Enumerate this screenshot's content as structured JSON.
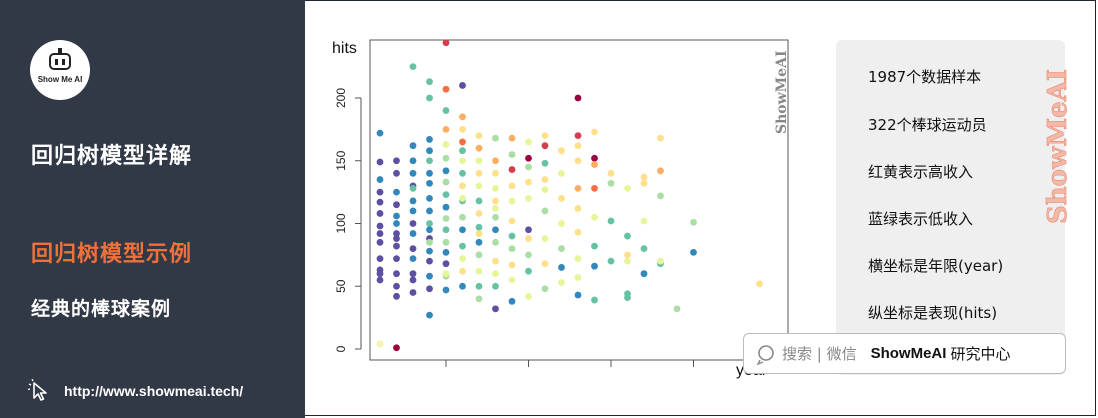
{
  "sidebar": {
    "logo_text": "Show Me AI",
    "title_main": "回归树模型详解",
    "title_highlight": "回归树模型示例",
    "subtitle": "经典的棒球案例",
    "link_url": "http://www.showmeai.tech/"
  },
  "plot": {
    "ylabel": "hits",
    "xlabel": "year",
    "watermark": "ShowMeAI",
    "ytick_labels": [
      "0",
      "50",
      "100",
      "150",
      "200"
    ]
  },
  "chart_data": {
    "type": "scatter",
    "title": "",
    "xlabel": "year",
    "ylabel": "hits",
    "ylim": [
      0,
      240
    ],
    "xlim": [
      0,
      25
    ],
    "yticks": [
      0,
      50,
      100,
      150,
      200
    ],
    "x_tick_labels_shown": false,
    "color_scale": "Spectral: red/yellow = high salary, blue/green = low salary",
    "points": [
      {
        "x": 1,
        "y": 4,
        "c": "#f6f2b0"
      },
      {
        "x": 1,
        "y": 149,
        "c": "#5e4fa2"
      },
      {
        "x": 1,
        "y": 172,
        "c": "#3288bd"
      },
      {
        "x": 1,
        "y": 60,
        "c": "#5e4fa2"
      },
      {
        "x": 1,
        "y": 85,
        "c": "#5e4fa2"
      },
      {
        "x": 1,
        "y": 108,
        "c": "#5e4fa2"
      },
      {
        "x": 1,
        "y": 135,
        "c": "#3288bd"
      },
      {
        "x": 1,
        "y": 55,
        "c": "#5e4fa2"
      },
      {
        "x": 1,
        "y": 72,
        "c": "#5e4fa2"
      },
      {
        "x": 1,
        "y": 98,
        "c": "#5e4fa2"
      },
      {
        "x": 1,
        "y": 117,
        "c": "#5e4fa2"
      },
      {
        "x": 1,
        "y": 125,
        "c": "#5e4fa2"
      },
      {
        "x": 1,
        "y": 92,
        "c": "#5e4fa2"
      },
      {
        "x": 1,
        "y": 63,
        "c": "#5e4fa2"
      },
      {
        "x": 2,
        "y": 1,
        "c": "#9e0142"
      },
      {
        "x": 2,
        "y": 150,
        "c": "#5e4fa2"
      },
      {
        "x": 2,
        "y": 140,
        "c": "#5e4fa2"
      },
      {
        "x": 2,
        "y": 125,
        "c": "#3288bd"
      },
      {
        "x": 2,
        "y": 115,
        "c": "#5e4fa2"
      },
      {
        "x": 2,
        "y": 100,
        "c": "#3288bd"
      },
      {
        "x": 2,
        "y": 92,
        "c": "#5e4fa2"
      },
      {
        "x": 2,
        "y": 82,
        "c": "#5e4fa2"
      },
      {
        "x": 2,
        "y": 72,
        "c": "#5e4fa2"
      },
      {
        "x": 2,
        "y": 60,
        "c": "#5e4fa2"
      },
      {
        "x": 2,
        "y": 50,
        "c": "#5e4fa2"
      },
      {
        "x": 2,
        "y": 42,
        "c": "#5e4fa2"
      },
      {
        "x": 2,
        "y": 106,
        "c": "#3288bd"
      },
      {
        "x": 2,
        "y": 88,
        "c": "#5e4fa2"
      },
      {
        "x": 3,
        "y": 225,
        "c": "#66c2a5"
      },
      {
        "x": 3,
        "y": 162,
        "c": "#3288bd"
      },
      {
        "x": 3,
        "y": 150,
        "c": "#3288bd"
      },
      {
        "x": 3,
        "y": 140,
        "c": "#3288bd"
      },
      {
        "x": 3,
        "y": 130,
        "c": "#5e4fa2"
      },
      {
        "x": 3,
        "y": 118,
        "c": "#3288bd"
      },
      {
        "x": 3,
        "y": 110,
        "c": "#3288bd"
      },
      {
        "x": 3,
        "y": 100,
        "c": "#5e4fa2"
      },
      {
        "x": 3,
        "y": 92,
        "c": "#3288bd"
      },
      {
        "x": 3,
        "y": 80,
        "c": "#5e4fa2"
      },
      {
        "x": 3,
        "y": 72,
        "c": "#3288bd"
      },
      {
        "x": 3,
        "y": 60,
        "c": "#5e4fa2"
      },
      {
        "x": 3,
        "y": 55,
        "c": "#5e4fa2"
      },
      {
        "x": 3,
        "y": 45,
        "c": "#5e4fa2"
      },
      {
        "x": 3,
        "y": 128,
        "c": "#66c2a5"
      },
      {
        "x": 4,
        "y": 213,
        "c": "#66c2a5"
      },
      {
        "x": 4,
        "y": 200,
        "c": "#66c2a5"
      },
      {
        "x": 4,
        "y": 167,
        "c": "#3288bd"
      },
      {
        "x": 4,
        "y": 158,
        "c": "#3288bd"
      },
      {
        "x": 4,
        "y": 150,
        "c": "#66c2a5"
      },
      {
        "x": 4,
        "y": 140,
        "c": "#3288bd"
      },
      {
        "x": 4,
        "y": 132,
        "c": "#3288bd"
      },
      {
        "x": 4,
        "y": 120,
        "c": "#3288bd"
      },
      {
        "x": 4,
        "y": 110,
        "c": "#3288bd"
      },
      {
        "x": 4,
        "y": 100,
        "c": "#66c2a5"
      },
      {
        "x": 4,
        "y": 95,
        "c": "#3288bd"
      },
      {
        "x": 4,
        "y": 88,
        "c": "#5e4fa2"
      },
      {
        "x": 4,
        "y": 78,
        "c": "#3288bd"
      },
      {
        "x": 4,
        "y": 70,
        "c": "#5e4fa2"
      },
      {
        "x": 4,
        "y": 58,
        "c": "#3288bd"
      },
      {
        "x": 4,
        "y": 48,
        "c": "#5e4fa2"
      },
      {
        "x": 4,
        "y": 27,
        "c": "#3288bd"
      },
      {
        "x": 4,
        "y": 85,
        "c": "#abdda4"
      },
      {
        "x": 5,
        "y": 244,
        "c": "#d53e4f"
      },
      {
        "x": 5,
        "y": 207,
        "c": "#f46d43"
      },
      {
        "x": 5,
        "y": 190,
        "c": "#66c2a5"
      },
      {
        "x": 5,
        "y": 175,
        "c": "#fdae61"
      },
      {
        "x": 5,
        "y": 163,
        "c": "#e6f598"
      },
      {
        "x": 5,
        "y": 152,
        "c": "#abdda4"
      },
      {
        "x": 5,
        "y": 142,
        "c": "#3288bd"
      },
      {
        "x": 5,
        "y": 133,
        "c": "#abdda4"
      },
      {
        "x": 5,
        "y": 123,
        "c": "#66c2a5"
      },
      {
        "x": 5,
        "y": 113,
        "c": "#3288bd"
      },
      {
        "x": 5,
        "y": 104,
        "c": "#abdda4"
      },
      {
        "x": 5,
        "y": 95,
        "c": "#66c2a5"
      },
      {
        "x": 5,
        "y": 85,
        "c": "#abdda4"
      },
      {
        "x": 5,
        "y": 77,
        "c": "#3288bd"
      },
      {
        "x": 5,
        "y": 68,
        "c": "#5e4fa2"
      },
      {
        "x": 5,
        "y": 58,
        "c": "#abdda4"
      },
      {
        "x": 5,
        "y": 47,
        "c": "#3288bd"
      },
      {
        "x": 5,
        "y": 60,
        "c": "#e6f598"
      },
      {
        "x": 6,
        "y": 210,
        "c": "#5e4fa2"
      },
      {
        "x": 6,
        "y": 185,
        "c": "#fdae61"
      },
      {
        "x": 6,
        "y": 175,
        "c": "#fee08b"
      },
      {
        "x": 6,
        "y": 165,
        "c": "#f46d43"
      },
      {
        "x": 6,
        "y": 158,
        "c": "#66c2a5"
      },
      {
        "x": 6,
        "y": 150,
        "c": "#e6f598"
      },
      {
        "x": 6,
        "y": 140,
        "c": "#66c2a5"
      },
      {
        "x": 6,
        "y": 130,
        "c": "#fee08b"
      },
      {
        "x": 6,
        "y": 118,
        "c": "#66c2a5"
      },
      {
        "x": 6,
        "y": 105,
        "c": "#abdda4"
      },
      {
        "x": 6,
        "y": 95,
        "c": "#3288bd"
      },
      {
        "x": 6,
        "y": 82,
        "c": "#66c2a5"
      },
      {
        "x": 6,
        "y": 72,
        "c": "#e6f598"
      },
      {
        "x": 6,
        "y": 62,
        "c": "#fee08b"
      },
      {
        "x": 6,
        "y": 50,
        "c": "#3288bd"
      },
      {
        "x": 6,
        "y": 120,
        "c": "#e6f598"
      },
      {
        "x": 7,
        "y": 170,
        "c": "#fee08b"
      },
      {
        "x": 7,
        "y": 160,
        "c": "#fdae61"
      },
      {
        "x": 7,
        "y": 150,
        "c": "#e6f598"
      },
      {
        "x": 7,
        "y": 140,
        "c": "#fee08b"
      },
      {
        "x": 7,
        "y": 130,
        "c": "#e6f598"
      },
      {
        "x": 7,
        "y": 118,
        "c": "#66c2a5"
      },
      {
        "x": 7,
        "y": 108,
        "c": "#fee08b"
      },
      {
        "x": 7,
        "y": 97,
        "c": "#66c2a5"
      },
      {
        "x": 7,
        "y": 85,
        "c": "#3288bd"
      },
      {
        "x": 7,
        "y": 75,
        "c": "#abdda4"
      },
      {
        "x": 7,
        "y": 62,
        "c": "#e6f598"
      },
      {
        "x": 7,
        "y": 50,
        "c": "#66c2a5"
      },
      {
        "x": 7,
        "y": 40,
        "c": "#abdda4"
      },
      {
        "x": 7,
        "y": 92,
        "c": "#fee08b"
      },
      {
        "x": 8,
        "y": 168,
        "c": "#abdda4"
      },
      {
        "x": 8,
        "y": 150,
        "c": "#fdae61"
      },
      {
        "x": 8,
        "y": 140,
        "c": "#fee08b"
      },
      {
        "x": 8,
        "y": 128,
        "c": "#e6f598"
      },
      {
        "x": 8,
        "y": 118,
        "c": "#fee08b"
      },
      {
        "x": 8,
        "y": 105,
        "c": "#abdda4"
      },
      {
        "x": 8,
        "y": 95,
        "c": "#3288bd"
      },
      {
        "x": 8,
        "y": 85,
        "c": "#abdda4"
      },
      {
        "x": 8,
        "y": 70,
        "c": "#fee08b"
      },
      {
        "x": 8,
        "y": 60,
        "c": "#e6f598"
      },
      {
        "x": 8,
        "y": 50,
        "c": "#66c2a5"
      },
      {
        "x": 8,
        "y": 32,
        "c": "#5e4fa2"
      },
      {
        "x": 8,
        "y": 112,
        "c": "#e6f598"
      },
      {
        "x": 9,
        "y": 168,
        "c": "#fdae61"
      },
      {
        "x": 9,
        "y": 155,
        "c": "#abdda4"
      },
      {
        "x": 9,
        "y": 143,
        "c": "#d53e4f"
      },
      {
        "x": 9,
        "y": 130,
        "c": "#fee08b"
      },
      {
        "x": 9,
        "y": 118,
        "c": "#e6f598"
      },
      {
        "x": 9,
        "y": 102,
        "c": "#fee08b"
      },
      {
        "x": 9,
        "y": 90,
        "c": "#66c2a5"
      },
      {
        "x": 9,
        "y": 80,
        "c": "#abdda4"
      },
      {
        "x": 9,
        "y": 67,
        "c": "#fee08b"
      },
      {
        "x": 9,
        "y": 55,
        "c": "#e6f598"
      },
      {
        "x": 9,
        "y": 38,
        "c": "#3288bd"
      },
      {
        "x": 10,
        "y": 165,
        "c": "#e6f598"
      },
      {
        "x": 10,
        "y": 152,
        "c": "#9e0142"
      },
      {
        "x": 10,
        "y": 145,
        "c": "#abdda4"
      },
      {
        "x": 10,
        "y": 133,
        "c": "#fee08b"
      },
      {
        "x": 10,
        "y": 120,
        "c": "#e6f598"
      },
      {
        "x": 10,
        "y": 95,
        "c": "#5e4fa2"
      },
      {
        "x": 10,
        "y": 88,
        "c": "#fee08b"
      },
      {
        "x": 10,
        "y": 75,
        "c": "#abdda4"
      },
      {
        "x": 10,
        "y": 62,
        "c": "#66c2a5"
      },
      {
        "x": 10,
        "y": 42,
        "c": "#e6f598"
      },
      {
        "x": 11,
        "y": 170,
        "c": "#fee08b"
      },
      {
        "x": 11,
        "y": 162,
        "c": "#d53e4f"
      },
      {
        "x": 11,
        "y": 148,
        "c": "#66c2a5"
      },
      {
        "x": 11,
        "y": 135,
        "c": "#fee08b"
      },
      {
        "x": 11,
        "y": 127,
        "c": "#e6f598"
      },
      {
        "x": 11,
        "y": 110,
        "c": "#abdda4"
      },
      {
        "x": 11,
        "y": 88,
        "c": "#e6f598"
      },
      {
        "x": 11,
        "y": 68,
        "c": "#fee08b"
      },
      {
        "x": 11,
        "y": 48,
        "c": "#abdda4"
      },
      {
        "x": 12,
        "y": 158,
        "c": "#fee08b"
      },
      {
        "x": 12,
        "y": 140,
        "c": "#e6f598"
      },
      {
        "x": 12,
        "y": 120,
        "c": "#fee08b"
      },
      {
        "x": 12,
        "y": 100,
        "c": "#e6f598"
      },
      {
        "x": 12,
        "y": 80,
        "c": "#abdda4"
      },
      {
        "x": 12,
        "y": 65,
        "c": "#3288bd"
      },
      {
        "x": 12,
        "y": 53,
        "c": "#e6f598"
      },
      {
        "x": 13,
        "y": 200,
        "c": "#9e0142"
      },
      {
        "x": 13,
        "y": 170,
        "c": "#d53e4f"
      },
      {
        "x": 13,
        "y": 162,
        "c": "#fee08b"
      },
      {
        "x": 13,
        "y": 150,
        "c": "#fee08b"
      },
      {
        "x": 13,
        "y": 128,
        "c": "#fdae61"
      },
      {
        "x": 13,
        "y": 112,
        "c": "#fee08b"
      },
      {
        "x": 13,
        "y": 93,
        "c": "#fee08b"
      },
      {
        "x": 13,
        "y": 72,
        "c": "#e6f598"
      },
      {
        "x": 13,
        "y": 57,
        "c": "#e6f598"
      },
      {
        "x": 13,
        "y": 43,
        "c": "#3288bd"
      },
      {
        "x": 14,
        "y": 173,
        "c": "#fee08b"
      },
      {
        "x": 14,
        "y": 152,
        "c": "#9e0142"
      },
      {
        "x": 14,
        "y": 147,
        "c": "#fdae61"
      },
      {
        "x": 14,
        "y": 128,
        "c": "#f46d43"
      },
      {
        "x": 14,
        "y": 105,
        "c": "#e6f598"
      },
      {
        "x": 14,
        "y": 82,
        "c": "#66c2a5"
      },
      {
        "x": 14,
        "y": 66,
        "c": "#3288bd"
      },
      {
        "x": 14,
        "y": 39,
        "c": "#66c2a5"
      },
      {
        "x": 15,
        "y": 140,
        "c": "#fee08b"
      },
      {
        "x": 15,
        "y": 132,
        "c": "#abdda4"
      },
      {
        "x": 15,
        "y": 102,
        "c": "#66c2a5"
      },
      {
        "x": 15,
        "y": 70,
        "c": "#66c2a5"
      },
      {
        "x": 16,
        "y": 128,
        "c": "#e6f598"
      },
      {
        "x": 16,
        "y": 90,
        "c": "#66c2a5"
      },
      {
        "x": 16,
        "y": 75,
        "c": "#fee08b"
      },
      {
        "x": 16,
        "y": 70,
        "c": "#e6f598"
      },
      {
        "x": 16,
        "y": 44,
        "c": "#66c2a5"
      },
      {
        "x": 16,
        "y": 41,
        "c": "#66c2a5"
      },
      {
        "x": 17,
        "y": 137,
        "c": "#fee08b"
      },
      {
        "x": 17,
        "y": 132,
        "c": "#fee08b"
      },
      {
        "x": 17,
        "y": 102,
        "c": "#e6f598"
      },
      {
        "x": 17,
        "y": 80,
        "c": "#66c2a5"
      },
      {
        "x": 17,
        "y": 60,
        "c": "#3288bd"
      },
      {
        "x": 18,
        "y": 168,
        "c": "#fee08b"
      },
      {
        "x": 18,
        "y": 142,
        "c": "#fdae61"
      },
      {
        "x": 18,
        "y": 122,
        "c": "#abdda4"
      },
      {
        "x": 18,
        "y": 68,
        "c": "#66c2a5"
      },
      {
        "x": 18,
        "y": 70,
        "c": "#e6f598"
      },
      {
        "x": 19,
        "y": 32,
        "c": "#abdda4"
      },
      {
        "x": 20,
        "y": 101,
        "c": "#abdda4"
      },
      {
        "x": 20,
        "y": 77,
        "c": "#3288bd"
      },
      {
        "x": 24,
        "y": 52,
        "c": "#fee08b"
      }
    ]
  },
  "panel": {
    "items": [
      "1987个数据样本",
      "322个棒球运动员",
      "红黄表示高收入",
      "蓝绿表示低收入",
      "横坐标是年限(year)",
      "纵坐标是表现(hits)"
    ],
    "side_watermark": "ShowMeAI"
  },
  "search": {
    "prefix": "搜索 | 微信",
    "brand": "ShowMeAI",
    "suffix": "研究中心"
  },
  "colors": {
    "sidebar_bg": "#313846",
    "highlight": "#f0703a",
    "panel_bg": "#efefef"
  }
}
